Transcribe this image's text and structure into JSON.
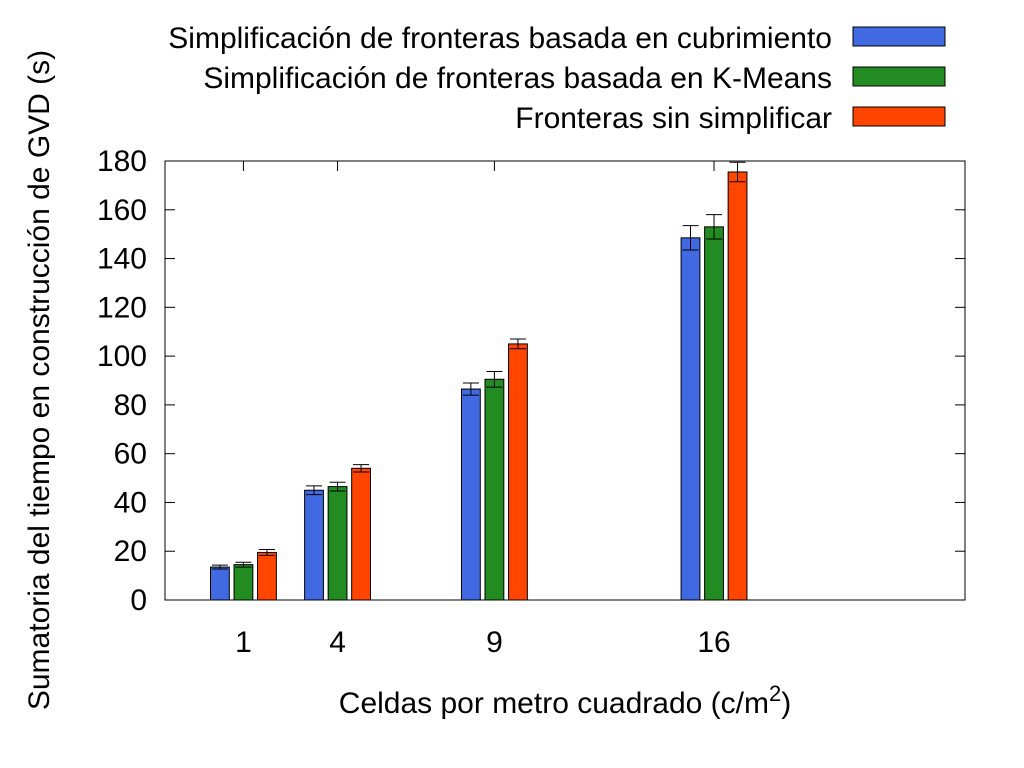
{
  "chart_data": {
    "type": "bar",
    "categories": [
      "1",
      "4",
      "9",
      "16"
    ],
    "x": [
      1,
      4,
      9,
      16
    ],
    "ylabel": "Sumatoria del tiempo en construcción de GVD (s)",
    "xlabel": "Celdas por metro cuadrado (c/m",
    "xlabel_superscript": "2",
    "xlabel_suffix": ")",
    "ylim": [
      0,
      180
    ],
    "xlim": [
      -1.5,
      24
    ],
    "yticks": [
      0,
      20,
      40,
      60,
      80,
      100,
      120,
      140,
      160,
      180
    ],
    "bar_width_units": 0.6,
    "bar_spacing_units": 0.75,
    "grid": false,
    "legend_position": "top-right",
    "series": [
      {
        "name": "Simplificación de fronteras basada en cubrimiento",
        "color": "#4169e1",
        "values": [
          13.5,
          45,
          86.5,
          148.5
        ],
        "errors": [
          0.8,
          1.8,
          2.5,
          5
        ]
      },
      {
        "name": "Simplificación de fronteras basada en K-Means",
        "color": "#228b22",
        "values": [
          14.5,
          46.5,
          90.5,
          153
        ],
        "errors": [
          1,
          1.8,
          3.2,
          5
        ]
      },
      {
        "name": "Fronteras sin simplificar",
        "color": "#ff4500",
        "values": [
          19.5,
          54,
          105,
          175.5
        ],
        "errors": [
          1.2,
          1.5,
          2,
          4
        ]
      }
    ]
  }
}
